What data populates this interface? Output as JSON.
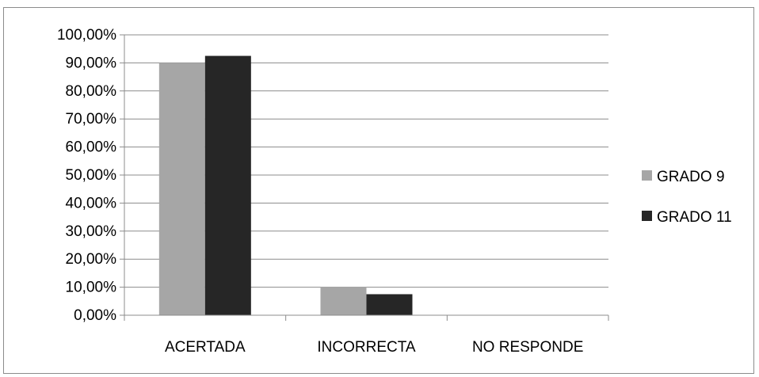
{
  "chart_data": {
    "type": "bar",
    "categories": [
      "ACERTADA",
      "INCORRECTA",
      "NO RESPONDE"
    ],
    "series": [
      {
        "name": "GRADO 9",
        "values": [
          90.0,
          10.0,
          0.0
        ],
        "color": "#a6a6a6"
      },
      {
        "name": "GRADO 11",
        "values": [
          92.5,
          7.5,
          0.0
        ],
        "color": "#262626"
      }
    ],
    "ylim": [
      0,
      100
    ],
    "yticks": [
      0,
      10,
      20,
      30,
      40,
      50,
      60,
      70,
      80,
      90,
      100
    ],
    "ytick_labels": [
      "0,00%",
      "10,00%",
      "20,00%",
      "30,00%",
      "40,00%",
      "50,00%",
      "60,00%",
      "70,00%",
      "80,00%",
      "90,00%",
      "100,00%"
    ],
    "grid": true,
    "legend_position": "right"
  },
  "colors": {
    "gridline": "#8c8c8c",
    "axis": "#8c8c8c"
  }
}
